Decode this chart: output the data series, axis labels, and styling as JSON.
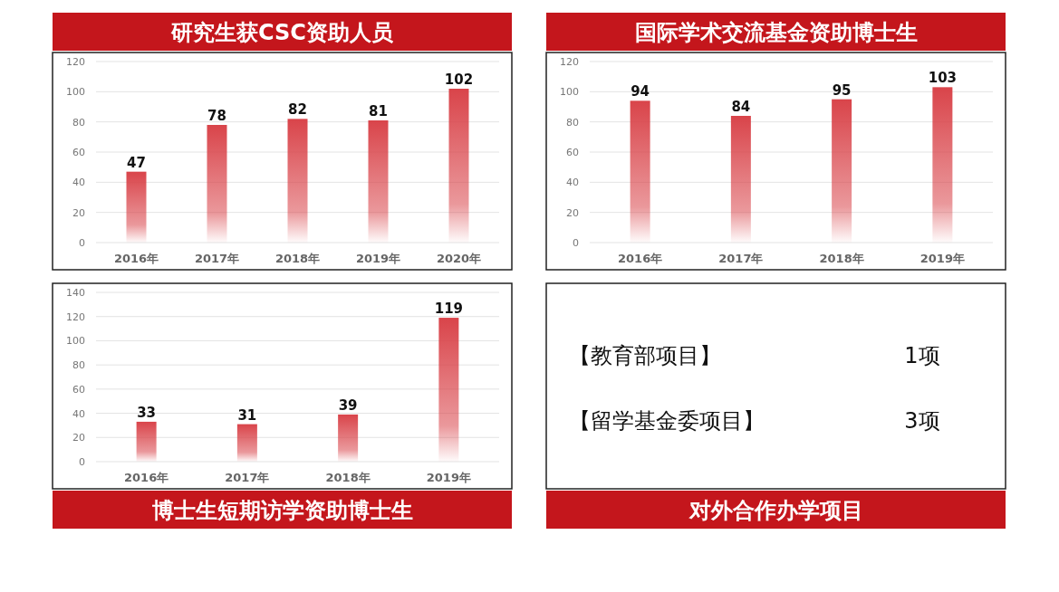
{
  "chart_data": [
    {
      "type": "bar",
      "title": "研究生获CSC资助人员",
      "categories": [
        "2016年",
        "2017年",
        "2018年",
        "2019年",
        "2020年"
      ],
      "values": [
        47,
        78,
        82,
        81,
        102
      ],
      "color": "#d9444a",
      "ylim": [
        0,
        120
      ],
      "yticks": [
        0,
        20,
        40,
        60,
        80,
        100,
        120
      ],
      "grid": "y",
      "data_labels": true
    },
    {
      "type": "bar",
      "title": "国际学术交流基金资助博士生",
      "categories": [
        "2016年",
        "2017年",
        "2018年",
        "2019年"
      ],
      "values": [
        94,
        84,
        95,
        103
      ],
      "color": "#d9444a",
      "ylim": [
        0,
        120
      ],
      "yticks": [
        0,
        20,
        40,
        60,
        80,
        100,
        120
      ],
      "grid": "y",
      "data_labels": true
    },
    {
      "type": "bar",
      "title": "博士生短期访学资助博士生",
      "categories": [
        "2016年",
        "2017年",
        "2018年",
        "2019年"
      ],
      "values": [
        33,
        31,
        39,
        119
      ],
      "color": "#d9444a",
      "ylim": [
        0,
        140
      ],
      "yticks": [
        0,
        20,
        40,
        60,
        80,
        100,
        120,
        140
      ],
      "grid": "y",
      "data_labels": true
    },
    {
      "type": "other",
      "title": "对外合作办学项目",
      "annotations": [
        "【教育部项目】",
        "1项",
        "【留学基金委项目】",
        "3项"
      ]
    }
  ]
}
